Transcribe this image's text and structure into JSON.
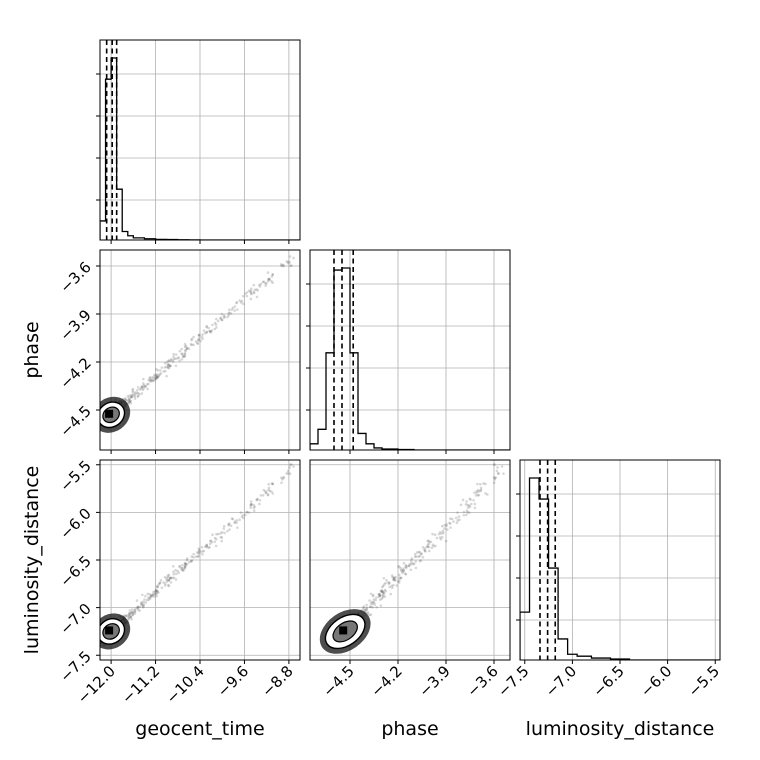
{
  "chart_data": {
    "type": "corner",
    "parameters": [
      "geocent_time",
      "phase",
      "luminosity_distance"
    ],
    "axis_labels": {
      "x": [
        "geocent_time",
        "phase",
        "luminosity_distance"
      ],
      "y": [
        "",
        "phase",
        "luminosity_distance"
      ]
    },
    "ranges": {
      "geocent_time": [
        -12.2,
        -8.6
      ],
      "phase": [
        -4.75,
        -3.5
      ],
      "luminosity_distance": [
        -7.55,
        -5.45
      ]
    },
    "ticks": {
      "geocent_time": [
        -12.0,
        -11.2,
        -10.4,
        -9.6,
        -8.8
      ],
      "phase": [
        -4.5,
        -4.2,
        -3.9,
        -3.6
      ],
      "luminosity_distance": [
        -7.5,
        -7.0,
        -6.5,
        -6.0,
        -5.5
      ]
    },
    "tick_labels": {
      "geocent_time": [
        "−12.0",
        "−11.2",
        "−10.4",
        "−9.6",
        "−8.8"
      ],
      "phase": [
        "−4.5",
        "−4.2",
        "−3.9",
        "−3.6"
      ],
      "luminosity_distance": [
        "−7.5",
        "−7.0",
        "−6.5",
        "−6.0",
        "−5.5"
      ]
    },
    "quantiles": {
      "geocent_time": [
        -12.08,
        -11.98,
        -11.9
      ],
      "phase": [
        -4.6,
        -4.55,
        -4.48
      ],
      "luminosity_distance": [
        -7.34,
        -7.26,
        -7.18
      ]
    },
    "histograms": {
      "geocent_time": {
        "edges": [
          -12.2,
          -12.1,
          -12.0,
          -11.9,
          -11.8,
          -11.7,
          -11.6,
          -11.4,
          -11.2,
          -11.0,
          -10.8,
          -10.6,
          -10.4,
          -8.6
        ],
        "counts": [
          0.09,
          0.76,
          0.86,
          0.24,
          0.04,
          0.02,
          0.01,
          0.006,
          0.003,
          0.002,
          0.001,
          0.0005,
          0.0
        ]
      },
      "phase": {
        "edges": [
          -4.75,
          -4.7,
          -4.65,
          -4.6,
          -4.55,
          -4.5,
          -4.45,
          -4.4,
          -4.35,
          -4.3,
          -4.2,
          -4.1,
          -3.5
        ],
        "counts": [
          0.03,
          0.1,
          0.47,
          0.87,
          0.88,
          0.47,
          0.08,
          0.03,
          0.01,
          0.005,
          0.002,
          0.0
        ]
      },
      "luminosity_distance": {
        "edges": [
          -7.55,
          -7.45,
          -7.35,
          -7.25,
          -7.15,
          -7.05,
          -6.95,
          -6.8,
          -6.6,
          -6.4,
          -5.45
        ],
        "counts": [
          0.25,
          0.95,
          0.84,
          0.48,
          0.11,
          0.03,
          0.02,
          0.01,
          0.005,
          0.0
        ]
      }
    },
    "samples": {
      "trend_slope_phase_vs_geocent_time": 0.3,
      "trend_slope_luminosity_distance_vs_geocent_time": 0.52,
      "trend_slope_luminosity_distance_vs_phase": 1.6,
      "mode": {
        "geocent_time": -12.0,
        "phase": -4.53,
        "luminosity_distance": -7.25
      }
    },
    "grid": true,
    "line_color": "#000000",
    "grid_color": "#b0b0b0",
    "point_color": "#6e6e6e"
  }
}
